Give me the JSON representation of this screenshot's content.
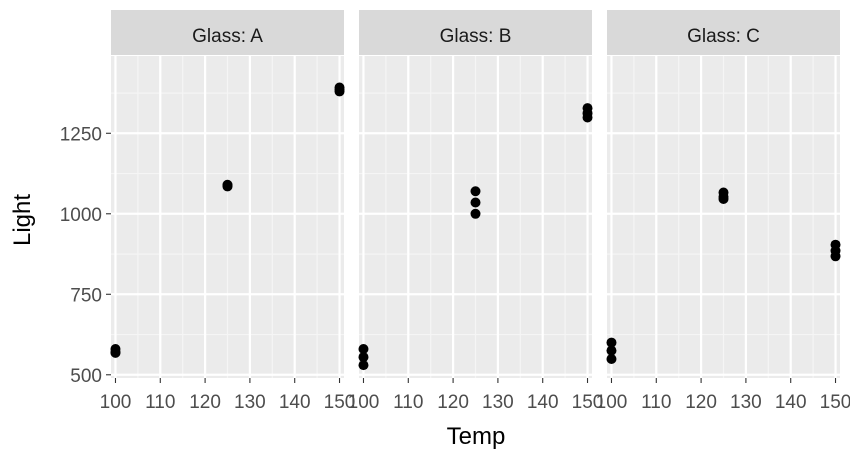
{
  "chart_data": {
    "type": "scatter",
    "facet_variable": "Glass",
    "xlabel": "Temp",
    "ylabel": "Light",
    "xlim": [
      99,
      151
    ],
    "ylim": [
      490,
      1490
    ],
    "x_ticks": [
      100,
      110,
      120,
      130,
      140,
      150
    ],
    "y_ticks": [
      500,
      750,
      1000,
      1250
    ],
    "grid": true,
    "legend": "none",
    "colors": {
      "panel_bg": "#ebebeb",
      "strip_bg": "#d9d9d9",
      "grid_major": "#ffffff",
      "grid_minor": "#f5f5f5",
      "point": "#000000",
      "tick": "#333333"
    },
    "facets": [
      {
        "strip": "Glass: A",
        "points": [
          {
            "x": 100,
            "y": 580
          },
          {
            "x": 100,
            "y": 568
          },
          {
            "x": 100,
            "y": 570
          },
          {
            "x": 125,
            "y": 1090
          },
          {
            "x": 125,
            "y": 1087
          },
          {
            "x": 125,
            "y": 1085
          },
          {
            "x": 150,
            "y": 1392
          },
          {
            "x": 150,
            "y": 1380
          },
          {
            "x": 150,
            "y": 1386
          }
        ]
      },
      {
        "strip": "Glass: B",
        "points": [
          {
            "x": 100,
            "y": 580
          },
          {
            "x": 100,
            "y": 555
          },
          {
            "x": 100,
            "y": 530
          },
          {
            "x": 125,
            "y": 1070
          },
          {
            "x": 125,
            "y": 1035
          },
          {
            "x": 125,
            "y": 1000
          },
          {
            "x": 150,
            "y": 1328
          },
          {
            "x": 150,
            "y": 1312
          },
          {
            "x": 150,
            "y": 1299
          }
        ]
      },
      {
        "strip": "Glass: C",
        "points": [
          {
            "x": 100,
            "y": 600
          },
          {
            "x": 100,
            "y": 575
          },
          {
            "x": 100,
            "y": 549
          },
          {
            "x": 125,
            "y": 1066
          },
          {
            "x": 125,
            "y": 1053
          },
          {
            "x": 125,
            "y": 1046
          },
          {
            "x": 150,
            "y": 904
          },
          {
            "x": 150,
            "y": 885
          },
          {
            "x": 150,
            "y": 868
          }
        ]
      }
    ]
  }
}
